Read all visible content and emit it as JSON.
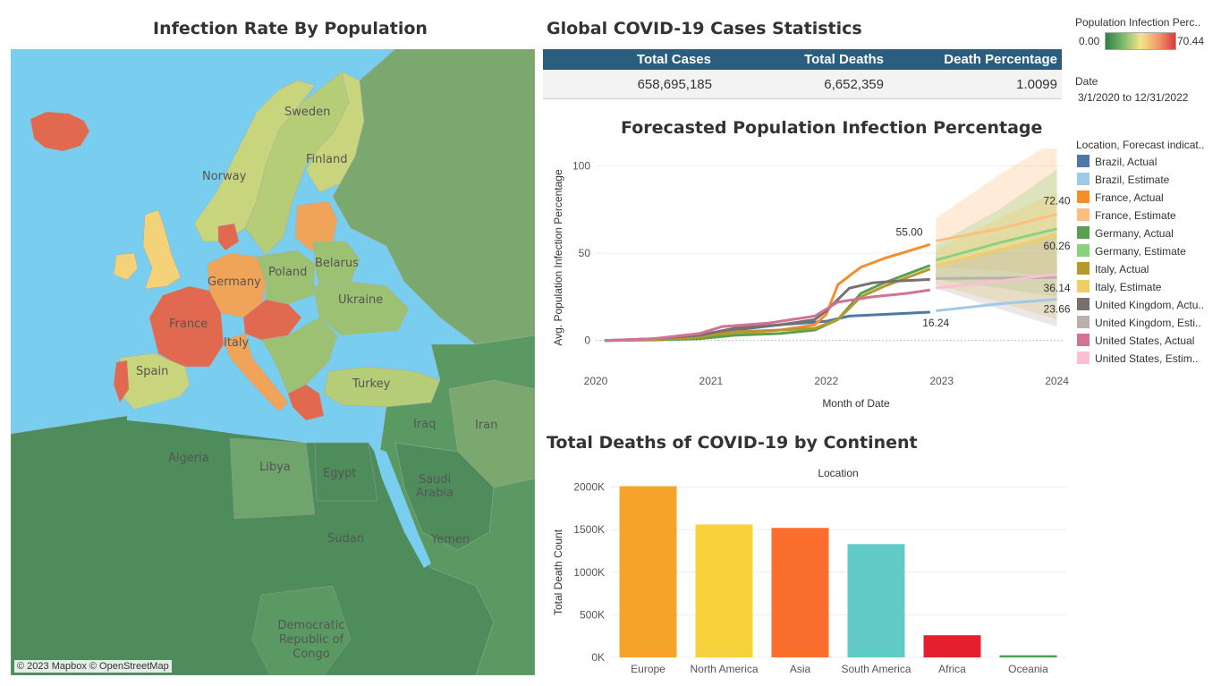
{
  "map": {
    "title": "Infection Rate By Population",
    "credit": "© 2023 Mapbox © OpenStreetMap",
    "labels": [
      "Sweden",
      "Finland",
      "Norway",
      "Poland",
      "Belarus",
      "Germany",
      "Ukraine",
      "France",
      "Italy",
      "Spain",
      "Turkey",
      "Iraq",
      "Iran",
      "Algeria",
      "Libya",
      "Egypt",
      "Saudi Arabia",
      "Sudan",
      "Yemen",
      "Democratic Republic of Congo"
    ],
    "colors": {
      "sea": "#79cdee",
      "high": "#e0694f",
      "mid": "#f0a45a",
      "low": "#d7d27a",
      "green": "#7aa86e",
      "dark": "#4e8c5c"
    }
  },
  "stats": {
    "title": "Global COVID-19 Cases Statistics",
    "headers": [
      "Total Cases",
      "Total Deaths",
      "Death Percentage"
    ],
    "values": [
      "658,695,185",
      "6,652,359",
      "1.0099"
    ]
  },
  "filters": {
    "legend_title": "Population Infection Perc..",
    "legend_min": "0.00",
    "legend_max": "70.44",
    "date_label": "Date",
    "date_value": "3/1/2020 to 12/31/2022"
  },
  "forecast": {
    "title": "Forecasted Population Infection Percentage",
    "legend_title": "Location, Forecast indicat..",
    "legend": [
      {
        "label": "Brazil, Actual",
        "color": "#4e79a7"
      },
      {
        "label": "Brazil, Estimate",
        "color": "#a0cbe8"
      },
      {
        "label": "France, Actual",
        "color": "#f28e2b"
      },
      {
        "label": "France, Estimate",
        "color": "#ffbe7d"
      },
      {
        "label": "Germany, Actual",
        "color": "#59a14f"
      },
      {
        "label": "Germany, Estimate",
        "color": "#8cd17d"
      },
      {
        "label": "Italy, Actual",
        "color": "#b6992d"
      },
      {
        "label": "Italy, Estimate",
        "color": "#f1ce63"
      },
      {
        "label": "United Kingdom, Actu..",
        "color": "#79706e"
      },
      {
        "label": "United Kingdom, Esti..",
        "color": "#bab0ac"
      },
      {
        "label": "United States, Actual",
        "color": "#d37295"
      },
      {
        "label": "United States, Estim..",
        "color": "#fabfd2"
      }
    ]
  },
  "chart_data": [
    {
      "type": "line",
      "title": "Forecasted Population Infection Percentage",
      "xlabel": "Month of Date",
      "ylabel": "Avg. Population Infection Percentage",
      "x_ticks": [
        "2020",
        "2021",
        "2022",
        "2023",
        "2024"
      ],
      "y_ticks": [
        "0",
        "50",
        "100"
      ],
      "ylim": [
        -15,
        110
      ],
      "xlim": [
        2020.0,
        2024.05
      ],
      "grid": true,
      "series": [
        {
          "name": "Brazil, Actual",
          "color": "#4e79a7",
          "x": [
            2020.08,
            2020.5,
            2020.9,
            2021.2,
            2021.6,
            2022.0,
            2022.2,
            2022.5,
            2022.9
          ],
          "y": [
            0,
            1,
            3,
            6,
            9,
            11,
            14,
            15,
            16.24
          ]
        },
        {
          "name": "Brazil, Estimate",
          "color": "#a0cbe8",
          "x": [
            2022.95,
            2023.5,
            2024.0
          ],
          "y": [
            17,
            21,
            23.66
          ]
        },
        {
          "name": "France, Actual",
          "color": "#f28e2b",
          "x": [
            2020.08,
            2020.5,
            2020.9,
            2021.2,
            2021.6,
            2021.9,
            2022.0,
            2022.1,
            2022.3,
            2022.5,
            2022.7,
            2022.9
          ],
          "y": [
            0,
            0.5,
            1.5,
            4,
            6,
            9,
            15,
            32,
            42,
            47,
            51,
            55.0
          ]
        },
        {
          "name": "France, Estimate",
          "color": "#ffbe7d",
          "x": [
            2022.95,
            2023.5,
            2024.0
          ],
          "y": [
            57,
            64,
            72.4
          ]
        },
        {
          "name": "Germany, Actual",
          "color": "#59a14f",
          "x": [
            2020.08,
            2020.5,
            2020.9,
            2021.2,
            2021.6,
            2021.9,
            2022.1,
            2022.3,
            2022.5,
            2022.7,
            2022.9
          ],
          "y": [
            0,
            0.3,
            1,
            3,
            4,
            6,
            12,
            27,
            33,
            38,
            43
          ]
        },
        {
          "name": "Germany, Estimate",
          "color": "#8cd17d",
          "x": [
            2022.95,
            2023.5,
            2024.0
          ],
          "y": [
            46,
            56,
            64
          ]
        },
        {
          "name": "Italy, Actual",
          "color": "#b6992d",
          "x": [
            2020.08,
            2020.5,
            2020.9,
            2021.2,
            2021.6,
            2021.9,
            2022.1,
            2022.3,
            2022.5,
            2022.7,
            2022.9
          ],
          "y": [
            0,
            0.5,
            2,
            5,
            6,
            7,
            12,
            25,
            31,
            36,
            41
          ]
        },
        {
          "name": "Italy, Estimate",
          "color": "#f1ce63",
          "x": [
            2022.95,
            2023.5,
            2024.0
          ],
          "y": [
            43,
            52,
            60.26
          ]
        },
        {
          "name": "United Kingdom, Actual",
          "color": "#79706e",
          "x": [
            2020.08,
            2020.5,
            2020.9,
            2021.2,
            2021.6,
            2021.9,
            2022.0,
            2022.2,
            2022.4,
            2022.6,
            2022.9
          ],
          "y": [
            0,
            1,
            3,
            7,
            9,
            12,
            17,
            30,
            33,
            34,
            35
          ]
        },
        {
          "name": "United Kingdom, Estimate",
          "color": "#bab0ac",
          "x": [
            2022.95,
            2023.5,
            2024.0
          ],
          "y": [
            35.5,
            35.8,
            36.14
          ]
        },
        {
          "name": "United States, Actual",
          "color": "#d37295",
          "x": [
            2020.08,
            2020.5,
            2020.9,
            2021.1,
            2021.5,
            2021.9,
            2022.1,
            2022.4,
            2022.7,
            2022.9
          ],
          "y": [
            0,
            1,
            4,
            8,
            10,
            14,
            22,
            25,
            27,
            29
          ]
        },
        {
          "name": "United States, Estimate",
          "color": "#fabfd2",
          "x": [
            2022.95,
            2023.5,
            2024.0
          ],
          "y": [
            30,
            34,
            38
          ]
        }
      ],
      "bands": [
        {
          "name": "France, Estimate",
          "color": "#ffbe7d",
          "x": [
            2022.95,
            2023.5,
            2024.0
          ],
          "lower": [
            42,
            40,
            37
          ],
          "upper": [
            70,
            95,
            115
          ]
        },
        {
          "name": "Germany, Estimate",
          "color": "#8cd17d",
          "x": [
            2022.95,
            2023.5,
            2024.0
          ],
          "lower": [
            35,
            30,
            25
          ],
          "upper": [
            55,
            75,
            98
          ]
        },
        {
          "name": "Italy, Estimate",
          "color": "#f1ce63",
          "x": [
            2022.95,
            2023.5,
            2024.0
          ],
          "lower": [
            32,
            22,
            12
          ],
          "upper": [
            52,
            70,
            85
          ]
        },
        {
          "name": "United Kingdom, Estimate",
          "color": "#bab0ac",
          "x": [
            2022.95,
            2023.5,
            2024.0
          ],
          "lower": [
            30,
            18,
            8
          ],
          "upper": [
            42,
            52,
            62
          ]
        }
      ],
      "annotations": [
        {
          "text": "55.00",
          "x": 2022.72,
          "y": 60
        },
        {
          "text": "72.40",
          "x": 2024.0,
          "y": 78
        },
        {
          "text": "60.26",
          "x": 2024.0,
          "y": 52
        },
        {
          "text": "36.14",
          "x": 2024.0,
          "y": 28
        },
        {
          "text": "23.66",
          "x": 2024.0,
          "y": 16
        },
        {
          "text": "16.24",
          "x": 2022.95,
          "y": 8
        }
      ]
    },
    {
      "type": "bar",
      "title": "Total Deaths of COVID-19 by Continent",
      "header": "Location",
      "xlabel": "",
      "ylabel": "Total Death Count",
      "categories": [
        "Europe",
        "North America",
        "Asia",
        "South America",
        "Africa",
        "Oceania"
      ],
      "values": [
        2010000,
        1560000,
        1520000,
        1330000,
        260000,
        25000
      ],
      "colors": [
        "#f5a42a",
        "#f8d23a",
        "#fb6e2d",
        "#62cbc8",
        "#e51f2d",
        "#49a34a"
      ],
      "y_ticks": [
        "0K",
        "500K",
        "1000K",
        "1500K",
        "2000K"
      ],
      "ylim": [
        0,
        2100000
      ],
      "grid": true
    }
  ]
}
